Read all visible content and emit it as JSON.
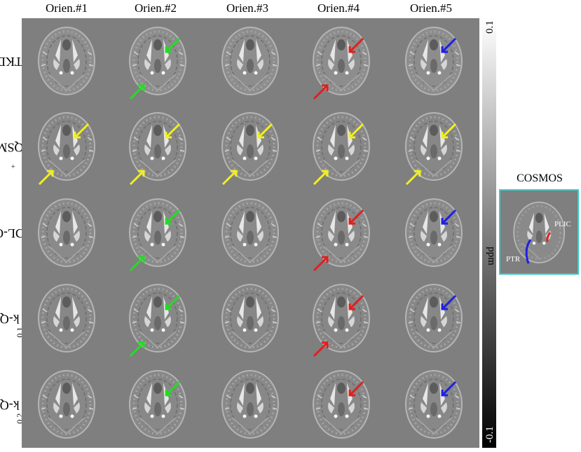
{
  "column_headers": [
    "Orien.#1",
    "Orien.#2",
    "Orien.#3",
    "Orien.#4",
    "Orien.#5"
  ],
  "rows": [
    {
      "label": "TKD"
    },
    {
      "label": "QSMnet",
      "sup": "+"
    },
    {
      "label": "MoDL-QSM"
    },
    {
      "label": "k-QSM",
      "sub": "0.1"
    },
    {
      "label": "k-QSM",
      "sub": "0.2"
    }
  ],
  "colorbar": {
    "max": "0.1",
    "unit": "ppm",
    "min": "-0.1"
  },
  "cosmos": {
    "title": "COSMOS",
    "labels": {
      "plic": "PLIC",
      "ptr": "PTR"
    }
  },
  "arrow_colors": {
    "green": "#22dd22",
    "red": "#e02020",
    "blue": "#2020e0",
    "yellow": "#f0f020"
  },
  "arrows": [
    {
      "row": 0,
      "col": 1,
      "color": "green",
      "kind": "plic"
    },
    {
      "row": 0,
      "col": 1,
      "color": "green",
      "kind": "ptr"
    },
    {
      "row": 0,
      "col": 3,
      "color": "red",
      "kind": "plic"
    },
    {
      "row": 0,
      "col": 3,
      "color": "red",
      "kind": "ptr"
    },
    {
      "row": 0,
      "col": 4,
      "color": "blue",
      "kind": "plic"
    },
    {
      "row": 1,
      "col": 0,
      "color": "yellow",
      "kind": "plic"
    },
    {
      "row": 1,
      "col": 0,
      "color": "yellow",
      "kind": "ptr"
    },
    {
      "row": 1,
      "col": 1,
      "color": "yellow",
      "kind": "plic"
    },
    {
      "row": 1,
      "col": 1,
      "color": "yellow",
      "kind": "ptr"
    },
    {
      "row": 1,
      "col": 2,
      "color": "yellow",
      "kind": "plic"
    },
    {
      "row": 1,
      "col": 2,
      "color": "yellow",
      "kind": "ptr"
    },
    {
      "row": 1,
      "col": 3,
      "color": "yellow",
      "kind": "plic"
    },
    {
      "row": 1,
      "col": 3,
      "color": "yellow",
      "kind": "ptr"
    },
    {
      "row": 1,
      "col": 4,
      "color": "yellow",
      "kind": "plic"
    },
    {
      "row": 1,
      "col": 4,
      "color": "yellow",
      "kind": "ptr"
    },
    {
      "row": 2,
      "col": 1,
      "color": "green",
      "kind": "plic"
    },
    {
      "row": 2,
      "col": 1,
      "color": "green",
      "kind": "ptr"
    },
    {
      "row": 2,
      "col": 3,
      "color": "red",
      "kind": "plic"
    },
    {
      "row": 2,
      "col": 3,
      "color": "red",
      "kind": "ptr"
    },
    {
      "row": 2,
      "col": 4,
      "color": "blue",
      "kind": "plic"
    },
    {
      "row": 3,
      "col": 1,
      "color": "green",
      "kind": "plic"
    },
    {
      "row": 3,
      "col": 1,
      "color": "green",
      "kind": "ptr"
    },
    {
      "row": 3,
      "col": 3,
      "color": "red",
      "kind": "plic"
    },
    {
      "row": 3,
      "col": 3,
      "color": "red",
      "kind": "ptr"
    },
    {
      "row": 3,
      "col": 4,
      "color": "blue",
      "kind": "plic"
    },
    {
      "row": 4,
      "col": 1,
      "color": "green",
      "kind": "plic"
    },
    {
      "row": 4,
      "col": 3,
      "color": "red",
      "kind": "plic"
    },
    {
      "row": 4,
      "col": 4,
      "color": "blue",
      "kind": "plic"
    }
  ]
}
